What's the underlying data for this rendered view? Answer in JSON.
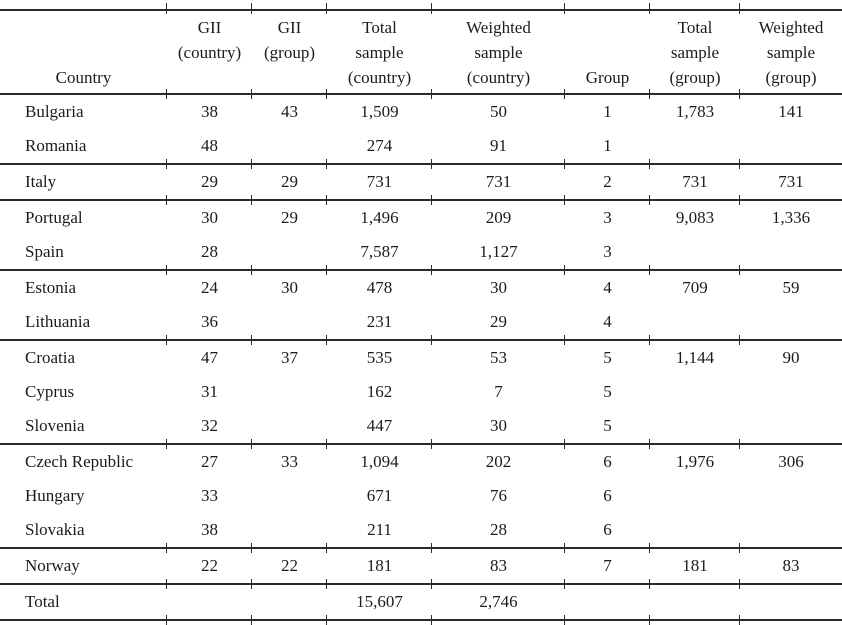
{
  "colors": {
    "text": "#1b1b1b",
    "rule": "#2b2b2b",
    "background": "#ffffff"
  },
  "table": {
    "columns": [
      {
        "key": "country",
        "header_lines": [
          "",
          "",
          "Country"
        ],
        "width": 167,
        "align": "left"
      },
      {
        "key": "gii-country",
        "header_lines": [
          "GII",
          "(country)",
          ""
        ],
        "width": 85,
        "align": "center"
      },
      {
        "key": "gii-group",
        "header_lines": [
          "GII",
          "(group)",
          ""
        ],
        "width": 75,
        "align": "center"
      },
      {
        "key": "total-sample-country",
        "header_lines": [
          "Total",
          "sample",
          "(country)"
        ],
        "width": 105,
        "align": "center"
      },
      {
        "key": "weighted-sample-country",
        "header_lines": [
          "Weighted",
          "sample",
          "(country)"
        ],
        "width": 133,
        "align": "center"
      },
      {
        "key": "group",
        "header_lines": [
          "",
          "",
          "Group"
        ],
        "width": 85,
        "align": "center"
      },
      {
        "key": "total-sample-group",
        "header_lines": [
          "Total",
          "sample",
          "(group)"
        ],
        "width": 90,
        "align": "center"
      },
      {
        "key": "weighted-sample-group",
        "header_lines": [
          "Weighted",
          "sample",
          "(group)"
        ],
        "width": 102,
        "align": "center"
      }
    ],
    "rows": [
      {
        "cells": [
          "Bulgaria",
          "38",
          "43",
          "1,509",
          "50",
          "1",
          "1,783",
          "141"
        ],
        "group_end": false
      },
      {
        "cells": [
          "Romania",
          "48",
          "",
          "274",
          "91",
          "1",
          "",
          ""
        ],
        "group_end": true
      },
      {
        "cells": [
          "Italy",
          "29",
          "29",
          "731",
          "731",
          "2",
          "731",
          "731"
        ],
        "group_end": true
      },
      {
        "cells": [
          "Portugal",
          "30",
          "29",
          "1,496",
          "209",
          "3",
          "9,083",
          "1,336"
        ],
        "group_end": false
      },
      {
        "cells": [
          "Spain",
          "28",
          "",
          "7,587",
          "1,127",
          "3",
          "",
          ""
        ],
        "group_end": true
      },
      {
        "cells": [
          "Estonia",
          "24",
          "30",
          "478",
          "30",
          "4",
          "709",
          "59"
        ],
        "group_end": false
      },
      {
        "cells": [
          "Lithuania",
          "36",
          "",
          "231",
          "29",
          "4",
          "",
          ""
        ],
        "group_end": true
      },
      {
        "cells": [
          "Croatia",
          "47",
          "37",
          "535",
          "53",
          "5",
          "1,144",
          "90"
        ],
        "group_end": false
      },
      {
        "cells": [
          "Cyprus",
          "31",
          "",
          "162",
          "7",
          "5",
          "",
          ""
        ],
        "group_end": false
      },
      {
        "cells": [
          "Slovenia",
          "32",
          "",
          "447",
          "30",
          "5",
          "",
          ""
        ],
        "group_end": true
      },
      {
        "cells": [
          "Czech Republic",
          "27",
          "33",
          "1,094",
          "202",
          "6",
          "1,976",
          "306"
        ],
        "group_end": false
      },
      {
        "cells": [
          "Hungary",
          "33",
          "",
          "671",
          "76",
          "6",
          "",
          ""
        ],
        "group_end": false
      },
      {
        "cells": [
          "Slovakia",
          "38",
          "",
          "211",
          "28",
          "6",
          "",
          ""
        ],
        "group_end": true
      },
      {
        "cells": [
          "Norway",
          "22",
          "22",
          "181",
          "83",
          "7",
          "181",
          "83"
        ],
        "group_end": true
      },
      {
        "cells": [
          "Total",
          "",
          "",
          "15,607",
          "2,746",
          "",
          "",
          ""
        ],
        "group_end": true
      }
    ]
  }
}
